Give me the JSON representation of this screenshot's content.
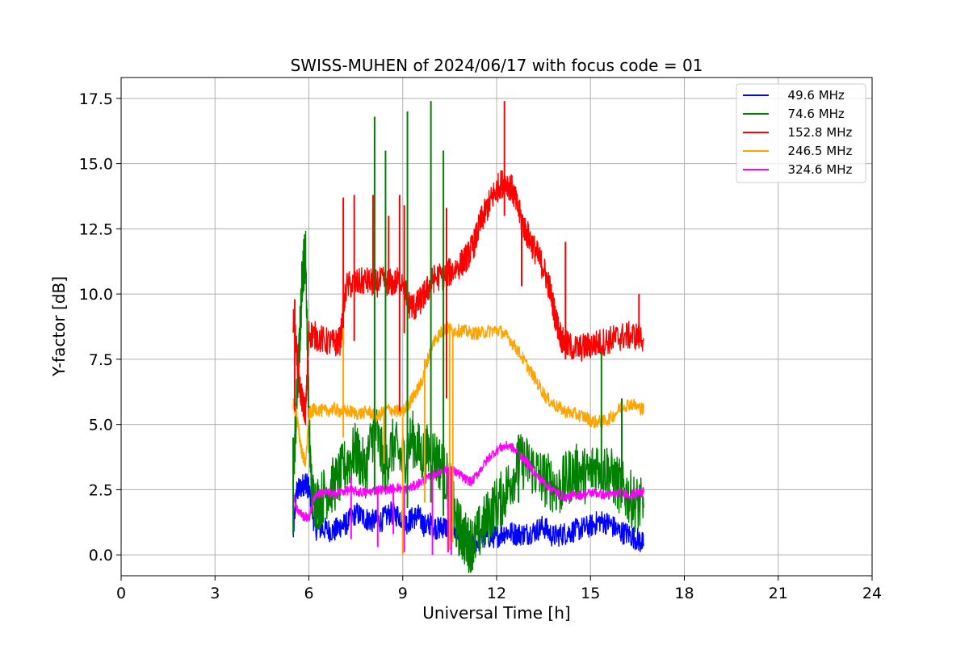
{
  "chart_data": {
    "type": "line",
    "title": "SWISS-MUHEN of 2024/06/17 with focus code = 01",
    "xlabel": "Universal Time [h]",
    "ylabel": "Y-factor [dB]",
    "xlim": [
      0,
      24
    ],
    "ylim": [
      -0.8,
      18.3
    ],
    "xticks": [
      0,
      3,
      6,
      9,
      12,
      15,
      18,
      21,
      24
    ],
    "xtick_labels": [
      "0",
      "3",
      "6",
      "9",
      "12",
      "15",
      "18",
      "21",
      "24"
    ],
    "yticks": [
      0.0,
      2.5,
      5.0,
      7.5,
      10.0,
      12.5,
      15.0,
      17.5
    ],
    "ytick_labels": [
      "0.0",
      "2.5",
      "5.0",
      "7.5",
      "10.0",
      "12.5",
      "15.0",
      "17.5"
    ],
    "grid": true,
    "legend_position": "top-right",
    "series": [
      {
        "name": "  49.6 MHz",
        "color": "#0000ff",
        "x": [
          5.5,
          5.6,
          5.75,
          5.9,
          6.0,
          6.2,
          6.5,
          6.8,
          7.0,
          7.2,
          7.5,
          7.8,
          8.0,
          8.3,
          8.6,
          8.9,
          9.1,
          9.3,
          9.5,
          9.7,
          9.9,
          10.1,
          10.3,
          10.5,
          10.8,
          11.0,
          11.2,
          11.5,
          11.8,
          12.0,
          12.3,
          12.6,
          12.9,
          13.2,
          13.5,
          13.8,
          14.1,
          14.4,
          14.7,
          15.0,
          15.3,
          15.6,
          15.9,
          16.2,
          16.5,
          16.7
        ],
        "y": [
          0.8,
          2.4,
          2.6,
          2.8,
          2.5,
          1.0,
          1.0,
          0.9,
          1.1,
          1.2,
          1.6,
          1.4,
          1.3,
          1.3,
          1.6,
          1.5,
          1.2,
          1.4,
          1.5,
          1.1,
          1.2,
          1.0,
          1.1,
          1.0,
          0.8,
          0.6,
          0.4,
          0.6,
          0.7,
          0.7,
          0.9,
          0.8,
          0.8,
          0.9,
          1.1,
          0.7,
          0.8,
          0.9,
          1.0,
          1.1,
          1.3,
          1.2,
          0.9,
          0.8,
          0.6,
          0.4
        ]
      },
      {
        "name": "  74.6 MHz",
        "color": "#008000",
        "x": [
          5.5,
          5.6,
          5.7,
          5.8,
          5.9,
          6.0,
          6.1,
          6.3,
          6.6,
          6.9,
          7.2,
          7.5,
          7.8,
          8.1,
          8.4,
          8.7,
          9.0,
          9.3,
          9.6,
          9.9,
          10.2,
          10.5,
          10.7,
          10.9,
          11.1,
          11.3,
          11.6,
          11.9,
          12.2,
          12.5,
          12.8,
          13.1,
          13.4,
          13.7,
          14.0,
          14.3,
          14.6,
          14.9,
          15.2,
          15.5,
          15.8,
          16.1,
          16.4,
          16.7
        ],
        "y": [
          3.0,
          5.5,
          8.0,
          11.0,
          11.5,
          5.0,
          2.2,
          2.0,
          2.5,
          2.8,
          3.5,
          4.0,
          3.2,
          5.0,
          3.4,
          4.2,
          3.6,
          4.5,
          3.8,
          4.0,
          3.5,
          2.6,
          1.2,
          0.8,
          0.4,
          0.5,
          1.2,
          1.8,
          2.2,
          3.0,
          3.6,
          3.4,
          3.0,
          2.8,
          2.5,
          3.0,
          3.2,
          3.0,
          3.5,
          3.3,
          2.8,
          2.4,
          2.0,
          1.8
        ]
      },
      {
        "name": "  152.8 MHz",
        "color": "#ff0000",
        "x": [
          5.5,
          5.6,
          5.7,
          5.8,
          5.9,
          6.0,
          6.2,
          6.5,
          6.8,
          7.0,
          7.2,
          7.5,
          7.8,
          8.1,
          8.4,
          8.7,
          9.0,
          9.2,
          9.4,
          9.6,
          9.8,
          10.0,
          10.3,
          10.6,
          10.9,
          11.1,
          11.3,
          11.5,
          11.7,
          11.9,
          12.1,
          12.3,
          12.5,
          12.7,
          12.9,
          13.1,
          13.3,
          13.5,
          13.7,
          13.9,
          14.1,
          14.3,
          14.6,
          14.9,
          15.2,
          15.5,
          15.8,
          16.1,
          16.4,
          16.7
        ],
        "y": [
          9.0,
          8.0,
          6.5,
          5.8,
          5.5,
          8.5,
          8.4,
          8.2,
          8.1,
          8.2,
          10.3,
          10.4,
          10.5,
          10.4,
          10.5,
          10.4,
          10.6,
          9.6,
          9.5,
          9.8,
          10.2,
          10.6,
          10.7,
          10.9,
          11.2,
          11.5,
          12.0,
          12.8,
          13.3,
          13.8,
          14.2,
          14.3,
          14.0,
          13.2,
          12.5,
          12.0,
          11.5,
          11.0,
          10.2,
          9.0,
          8.2,
          8.0,
          7.9,
          8.0,
          8.1,
          8.2,
          8.3,
          8.4,
          8.4,
          8.3
        ]
      },
      {
        "name": "  246.5 MHz",
        "color": "#ffa500",
        "x": [
          5.5,
          5.6,
          5.7,
          5.8,
          5.9,
          6.0,
          6.2,
          6.5,
          6.8,
          7.0,
          7.3,
          7.6,
          7.9,
          8.2,
          8.5,
          8.8,
          9.0,
          9.2,
          9.4,
          9.6,
          9.8,
          10.0,
          10.2,
          10.4,
          10.6,
          10.9,
          11.2,
          11.5,
          11.8,
          12.1,
          12.4,
          12.7,
          13.0,
          13.3,
          13.6,
          13.9,
          14.2,
          14.5,
          14.8,
          15.1,
          15.4,
          15.7,
          16.0,
          16.3,
          16.6,
          16.7
        ],
        "y": [
          5.8,
          5.5,
          4.5,
          3.8,
          3.5,
          5.4,
          5.6,
          5.5,
          5.6,
          5.5,
          5.5,
          5.4,
          5.5,
          5.3,
          5.6,
          5.5,
          5.5,
          5.8,
          6.2,
          6.6,
          7.5,
          8.2,
          8.5,
          8.7,
          8.6,
          8.6,
          8.5,
          8.5,
          8.6,
          8.6,
          8.3,
          7.8,
          7.2,
          6.6,
          6.0,
          5.7,
          5.5,
          5.4,
          5.3,
          5.1,
          5.1,
          5.3,
          5.7,
          5.8,
          5.6,
          5.6
        ]
      },
      {
        "name": "  324.6 MHz",
        "color": "#ff00ff",
        "x": [
          5.5,
          5.6,
          5.8,
          6.0,
          6.2,
          6.5,
          6.8,
          7.0,
          7.3,
          7.6,
          7.9,
          8.2,
          8.5,
          8.8,
          9.0,
          9.3,
          9.6,
          9.9,
          10.2,
          10.5,
          10.8,
          11.0,
          11.2,
          11.5,
          11.8,
          12.1,
          12.4,
          12.7,
          13.0,
          13.3,
          13.6,
          13.9,
          14.2,
          14.5,
          14.8,
          15.1,
          15.4,
          15.7,
          16.0,
          16.3,
          16.6,
          16.7
        ],
        "y": [
          2.4,
          1.8,
          1.5,
          1.4,
          2.3,
          2.4,
          2.3,
          2.4,
          2.5,
          2.4,
          2.4,
          2.5,
          2.5,
          2.6,
          2.5,
          2.6,
          2.8,
          3.0,
          3.2,
          3.3,
          3.1,
          2.9,
          2.8,
          3.3,
          3.8,
          4.1,
          4.2,
          3.9,
          3.5,
          3.0,
          2.7,
          2.4,
          2.2,
          2.3,
          2.3,
          2.4,
          2.3,
          2.3,
          2.4,
          2.3,
          2.4,
          2.4
        ]
      }
    ],
    "spikes": [
      {
        "series": 2,
        "x": 5.55,
        "y1": 5.5,
        "y2": 9.8
      },
      {
        "series": 2,
        "x": 7.1,
        "y1": 8.0,
        "y2": 13.7
      },
      {
        "series": 2,
        "x": 7.45,
        "y1": 8.2,
        "y2": 13.8
      },
      {
        "series": 2,
        "x": 8.05,
        "y1": 10.0,
        "y2": 13.8
      },
      {
        "series": 2,
        "x": 8.55,
        "y1": 10.0,
        "y2": 13.0
      },
      {
        "series": 2,
        "x": 8.9,
        "y1": 5.5,
        "y2": 13.8
      },
      {
        "series": 2,
        "x": 9.05,
        "y1": 8.5,
        "y2": 13.4
      },
      {
        "series": 2,
        "x": 10.4,
        "y1": 6.0,
        "y2": 13.3
      },
      {
        "series": 2,
        "x": 12.25,
        "y1": 13.0,
        "y2": 17.4
      },
      {
        "series": 2,
        "x": 12.8,
        "y1": 10.3,
        "y2": 13.0
      },
      {
        "series": 2,
        "x": 14.2,
        "y1": 7.5,
        "y2": 12.0
      },
      {
        "series": 2,
        "x": 16.55,
        "y1": 8.0,
        "y2": 10.0
      },
      {
        "series": 1,
        "x": 5.5,
        "y1": 0.8,
        "y2": 4.5
      },
      {
        "series": 1,
        "x": 8.1,
        "y1": 2.5,
        "y2": 16.8
      },
      {
        "series": 1,
        "x": 8.45,
        "y1": 2.5,
        "y2": 15.5
      },
      {
        "series": 1,
        "x": 9.15,
        "y1": 1.8,
        "y2": 17.0
      },
      {
        "series": 1,
        "x": 9.9,
        "y1": 2.0,
        "y2": 17.4
      },
      {
        "series": 1,
        "x": 10.3,
        "y1": 1.5,
        "y2": 15.5
      },
      {
        "series": 1,
        "x": 12.7,
        "y1": 2.0,
        "y2": 4.6
      },
      {
        "series": 1,
        "x": 15.35,
        "y1": 3.0,
        "y2": 7.8
      },
      {
        "series": 1,
        "x": 16.0,
        "y1": 2.0,
        "y2": 6.0
      },
      {
        "series": 3,
        "x": 7.1,
        "y1": 4.5,
        "y2": 8.7
      },
      {
        "series": 3,
        "x": 8.4,
        "y1": 3.5,
        "y2": 5.5
      },
      {
        "series": 3,
        "x": 9.0,
        "y1": 0.0,
        "y2": 5.3
      },
      {
        "series": 3,
        "x": 9.7,
        "y1": 2.0,
        "y2": 7.5
      },
      {
        "series": 3,
        "x": 10.5,
        "y1": 0.2,
        "y2": 8.6
      },
      {
        "series": 3,
        "x": 10.6,
        "y1": 0.5,
        "y2": 8.5
      },
      {
        "series": 4,
        "x": 7.35,
        "y1": 0.6,
        "y2": 3.0
      },
      {
        "series": 4,
        "x": 8.2,
        "y1": 0.3,
        "y2": 2.6
      },
      {
        "series": 4,
        "x": 8.7,
        "y1": 0.8,
        "y2": 2.6
      },
      {
        "series": 4,
        "x": 9.05,
        "y1": 0.1,
        "y2": 2.6
      },
      {
        "series": 4,
        "x": 9.95,
        "y1": 0.0,
        "y2": 3.0
      },
      {
        "series": 4,
        "x": 10.45,
        "y1": 0.1,
        "y2": 3.2
      },
      {
        "series": 4,
        "x": 10.55,
        "y1": 0.0,
        "y2": 3.4
      }
    ]
  }
}
